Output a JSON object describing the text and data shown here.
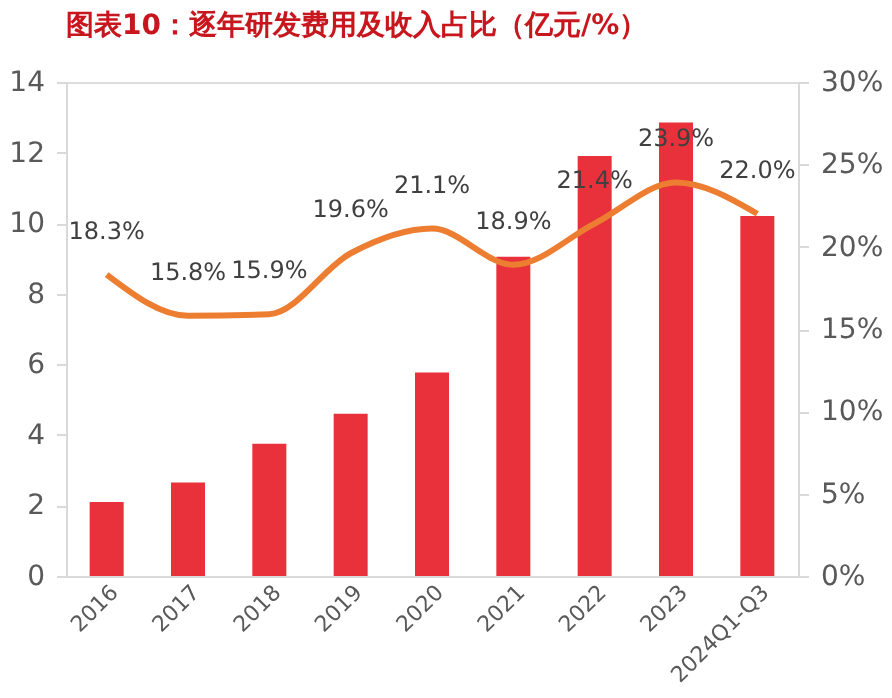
{
  "chart_data": {
    "type": "bar",
    "title": "图表10：逐年研发费用及收入占比（亿元/%）",
    "categories": [
      "2016",
      "2017",
      "2018",
      "2019",
      "2020",
      "2021",
      "2022",
      "2023",
      "2024Q1-Q3"
    ],
    "series": [
      {
        "color": "#e8313a",
        "values": [
          2.1,
          2.65,
          3.75,
          4.6,
          5.77,
          9.05,
          11.9,
          12.85,
          10.2
        ]
      },
      {
        "type": "line",
        "axis": "y2",
        "color": "#ed7d31",
        "values": [
          18.3,
          15.8,
          15.9,
          19.6,
          21.1,
          18.9,
          21.4,
          23.9,
          22.0
        ],
        "value_labels": [
          "18.3%",
          "15.8%",
          "15.9%",
          "19.6%",
          "21.1%",
          "18.9%",
          "21.4%",
          "23.9%",
          "22.0%"
        ]
      }
    ],
    "ylim": [
      0,
      14
    ],
    "yticks": [
      0,
      2,
      4,
      6,
      8,
      10,
      12,
      14
    ],
    "y2lim": [
      0,
      30
    ],
    "y2ticks": [
      {
        "value": 0,
        "label": "0%"
      },
      {
        "value": 5,
        "label": "5%"
      },
      {
        "value": 10,
        "label": "10%"
      },
      {
        "value": 15,
        "label": "15%"
      },
      {
        "value": 20,
        "label": "20%"
      },
      {
        "value": 25,
        "label": "25%"
      },
      {
        "value": 30,
        "label": "30%"
      }
    ],
    "grid": false,
    "marker": "none"
  }
}
